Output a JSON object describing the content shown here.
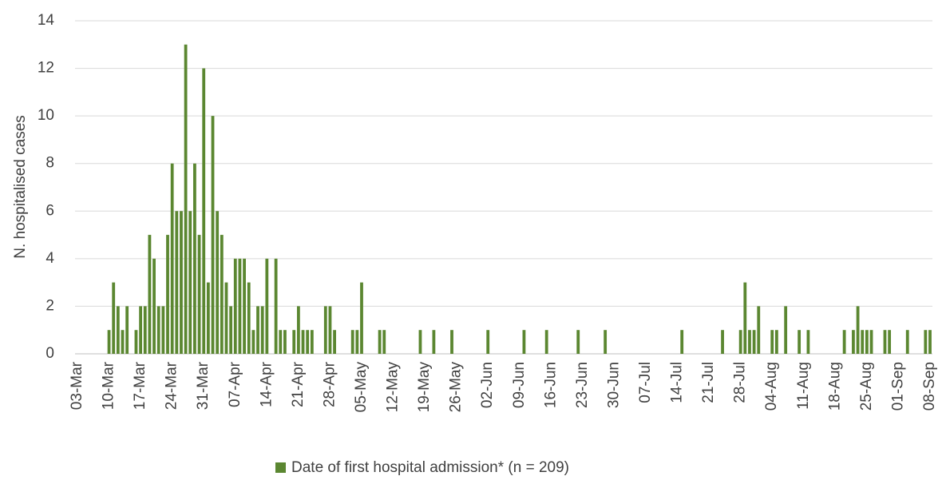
{
  "chart_data": {
    "type": "bar",
    "y_label": "N. hospitalised cases",
    "legend_position": "bottom",
    "grid": true,
    "ylim": [
      0,
      14
    ],
    "yticks": [
      0,
      2,
      4,
      6,
      8,
      10,
      12,
      14
    ],
    "categories": [
      "03-Mar",
      null,
      null,
      null,
      null,
      null,
      null,
      "10-Mar",
      null,
      null,
      null,
      null,
      null,
      null,
      "17-Mar",
      null,
      null,
      null,
      null,
      null,
      null,
      "24-Mar",
      null,
      null,
      null,
      null,
      null,
      null,
      "31-Mar",
      null,
      null,
      null,
      null,
      null,
      null,
      "07-Apr",
      null,
      null,
      null,
      null,
      null,
      null,
      "14-Apr",
      null,
      null,
      null,
      null,
      null,
      null,
      "21-Apr",
      null,
      null,
      null,
      null,
      null,
      null,
      "28-Apr",
      null,
      null,
      null,
      null,
      null,
      null,
      "05-May",
      null,
      null,
      null,
      null,
      null,
      null,
      "12-May",
      null,
      null,
      null,
      null,
      null,
      null,
      "19-May",
      null,
      null,
      null,
      null,
      null,
      null,
      "26-May",
      null,
      null,
      null,
      null,
      null,
      null,
      "02-Jun",
      null,
      null,
      null,
      null,
      null,
      null,
      "09-Jun",
      null,
      null,
      null,
      null,
      null,
      null,
      "16-Jun",
      null,
      null,
      null,
      null,
      null,
      null,
      "23-Jun",
      null,
      null,
      null,
      null,
      null,
      null,
      "30-Jun",
      null,
      null,
      null,
      null,
      null,
      null,
      "07-Jul",
      null,
      null,
      null,
      null,
      null,
      null,
      "14-Jul",
      null,
      null,
      null,
      null,
      null,
      null,
      "21-Jul",
      null,
      null,
      null,
      null,
      null,
      null,
      "28-Jul",
      null,
      null,
      null,
      null,
      null,
      null,
      "04-Aug",
      null,
      null,
      null,
      null,
      null,
      null,
      "11-Aug",
      null,
      null,
      null,
      null,
      null,
      null,
      "18-Aug",
      null,
      null,
      null,
      null,
      null,
      null,
      "25-Aug",
      null,
      null,
      null,
      null,
      null,
      null,
      "01-Sep",
      null,
      null,
      null,
      null,
      null,
      null,
      "08-Sep"
    ],
    "series": [
      {
        "name": "Date of first hospital admission* (n = 209)",
        "color": "#5b8731",
        "values": [
          0,
          0,
          0,
          0,
          0,
          0,
          0,
          1,
          3,
          2,
          1,
          2,
          0,
          1,
          2,
          2,
          5,
          4,
          2,
          2,
          5,
          8,
          6,
          6,
          13,
          6,
          8,
          5,
          12,
          3,
          10,
          6,
          5,
          3,
          2,
          4,
          4,
          4,
          3,
          1,
          2,
          2,
          4,
          0,
          4,
          1,
          1,
          0,
          1,
          2,
          1,
          1,
          1,
          0,
          0,
          2,
          2,
          1,
          0,
          0,
          0,
          1,
          1,
          3,
          0,
          0,
          0,
          1,
          1,
          0,
          0,
          0,
          0,
          0,
          0,
          0,
          1,
          0,
          0,
          1,
          0,
          0,
          0,
          1,
          0,
          0,
          0,
          0,
          0,
          0,
          0,
          1,
          0,
          0,
          0,
          0,
          0,
          0,
          0,
          1,
          0,
          0,
          0,
          0,
          1,
          0,
          0,
          0,
          0,
          0,
          0,
          1,
          0,
          0,
          0,
          0,
          0,
          1,
          0,
          0,
          0,
          0,
          0,
          0,
          0,
          0,
          0,
          0,
          0,
          0,
          0,
          0,
          0,
          0,
          1,
          0,
          0,
          0,
          0,
          0,
          0,
          0,
          0,
          1,
          0,
          0,
          0,
          1,
          3,
          1,
          1,
          2,
          0,
          0,
          1,
          1,
          0,
          2,
          0,
          0,
          1,
          0,
          1,
          0,
          0,
          0,
          0,
          0,
          0,
          0,
          1,
          0,
          1,
          2,
          1,
          1,
          1,
          0,
          0,
          1,
          1,
          0,
          0,
          0,
          1,
          0,
          0,
          0,
          1,
          1
        ]
      }
    ]
  }
}
